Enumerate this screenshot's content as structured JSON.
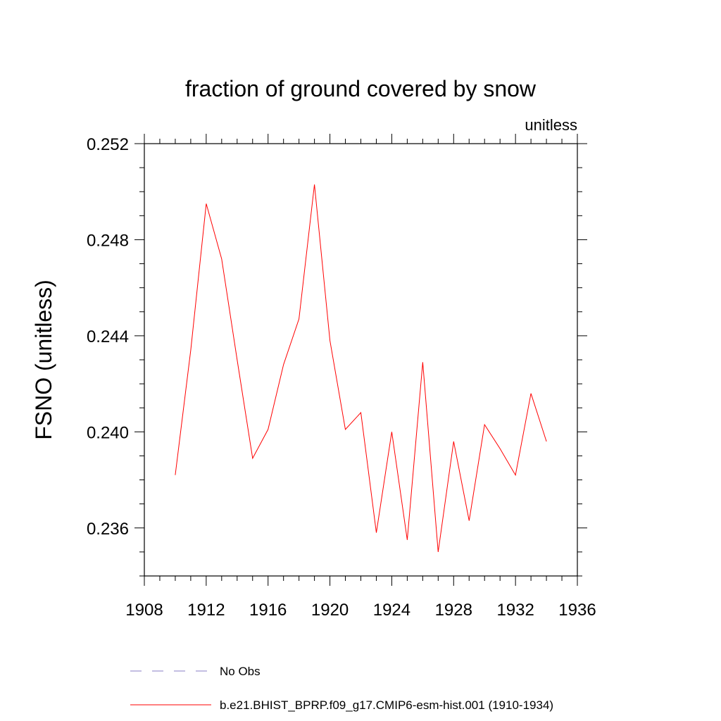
{
  "chart_data": {
    "type": "line",
    "title": "fraction of ground covered by snow",
    "units_label": "unitless",
    "xlabel": "",
    "ylabel": "FSNO  (unitless)",
    "xlim": [
      1908,
      1936
    ],
    "ylim": [
      0.234,
      0.252
    ],
    "x_ticks": [
      1908,
      1912,
      1916,
      1920,
      1924,
      1928,
      1932,
      1936
    ],
    "x_tick_labels": [
      "1908",
      "1912",
      "1916",
      "1920",
      "1924",
      "1928",
      "1932",
      "1936"
    ],
    "y_ticks": [
      0.236,
      0.24,
      0.244,
      0.248,
      0.252
    ],
    "y_tick_labels": [
      "0.236",
      "0.240",
      "0.244",
      "0.248",
      "0.252"
    ],
    "y_minor_step": 0.001,
    "x_minor_step": 1,
    "grid": false,
    "legend_position": "bottom",
    "series": [
      {
        "name": "b.e21.BHIST_BPRP.f09_g17.CMIP6-esm-hist.001 (1910-1934)",
        "color": "#ff0000",
        "x": [
          1910,
          1911,
          1912,
          1913,
          1914,
          1915,
          1916,
          1917,
          1918,
          1919,
          1920,
          1921,
          1922,
          1923,
          1924,
          1925,
          1926,
          1927,
          1928,
          1929,
          1930,
          1931,
          1932,
          1933,
          1934
        ],
        "y": [
          0.2382,
          0.2434,
          0.2495,
          0.2472,
          0.243,
          0.2389,
          0.2401,
          0.2428,
          0.2447,
          0.2503,
          0.2438,
          0.2401,
          0.2408,
          0.2358,
          0.24,
          0.2355,
          0.2429,
          0.235,
          0.2396,
          0.2363,
          0.2403,
          0.2393,
          0.2382,
          0.2416,
          0.2396
        ]
      }
    ],
    "legend": [
      {
        "label": "No Obs",
        "color": "#8a7cc4",
        "style": "dashed"
      },
      {
        "label": "b.e21.BHIST_BPRP.f09_g17.CMIP6-esm-hist.001 (1910-1934)",
        "color": "#ff0000",
        "style": "solid"
      }
    ]
  }
}
